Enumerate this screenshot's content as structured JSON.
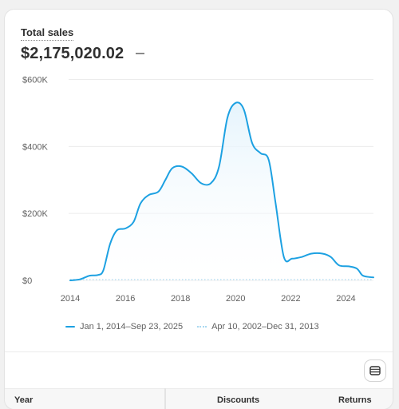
{
  "metric": {
    "title": "Total sales",
    "value": "$2,175,020.02",
    "delta": "—"
  },
  "legend": {
    "current": "Jan 1, 2014–Sep 23, 2025",
    "comparison": "Apr 10, 2002–Dec 31, 2013"
  },
  "table": {
    "headers": [
      "Year",
      "Discounts",
      "Returns"
    ]
  },
  "icons": {
    "table_toggle": "table-icon"
  },
  "colors": {
    "line": "#1da1e2",
    "comparison": "#a9d8f0",
    "area_top": "#e3f3fc"
  },
  "chart_data": {
    "type": "area",
    "y_ticks": [
      "$0",
      "$200K",
      "$400K",
      "$600K"
    ],
    "x_ticks": [
      "2014",
      "2016",
      "2018",
      "2020",
      "2022",
      "2024"
    ],
    "ylim": [
      0,
      600000
    ],
    "xlim": [
      2014,
      2025
    ],
    "grid": true,
    "legend_position": "bottom",
    "series": [
      {
        "name": "Jan 1, 2014–Sep 23, 2025",
        "style": "solid",
        "points": [
          [
            2014.0,
            0
          ],
          [
            2014.35,
            3000
          ],
          [
            2014.7,
            14000
          ],
          [
            2015.0,
            16000
          ],
          [
            2015.2,
            30000
          ],
          [
            2015.45,
            110000
          ],
          [
            2015.7,
            150000
          ],
          [
            2016.0,
            155000
          ],
          [
            2016.3,
            175000
          ],
          [
            2016.55,
            230000
          ],
          [
            2016.85,
            255000
          ],
          [
            2017.2,
            265000
          ],
          [
            2017.45,
            300000
          ],
          [
            2017.7,
            335000
          ],
          [
            2018.05,
            340000
          ],
          [
            2018.4,
            320000
          ],
          [
            2018.75,
            290000
          ],
          [
            2019.1,
            290000
          ],
          [
            2019.4,
            340000
          ],
          [
            2019.7,
            485000
          ],
          [
            2020.0,
            530000
          ],
          [
            2020.3,
            510000
          ],
          [
            2020.6,
            410000
          ],
          [
            2020.9,
            380000
          ],
          [
            2021.2,
            360000
          ],
          [
            2021.45,
            230000
          ],
          [
            2021.75,
            70000
          ],
          [
            2022.05,
            65000
          ],
          [
            2022.4,
            70000
          ],
          [
            2022.75,
            80000
          ],
          [
            2023.15,
            80000
          ],
          [
            2023.45,
            70000
          ],
          [
            2023.75,
            45000
          ],
          [
            2024.1,
            42000
          ],
          [
            2024.4,
            35000
          ],
          [
            2024.6,
            15000
          ],
          [
            2024.85,
            10000
          ],
          [
            2025.0,
            9000
          ]
        ]
      },
      {
        "name": "Apr 10, 2002–Dec 31, 2013",
        "style": "dotted",
        "points": [
          [
            2014.0,
            0
          ],
          [
            2025.0,
            0
          ]
        ]
      }
    ]
  }
}
